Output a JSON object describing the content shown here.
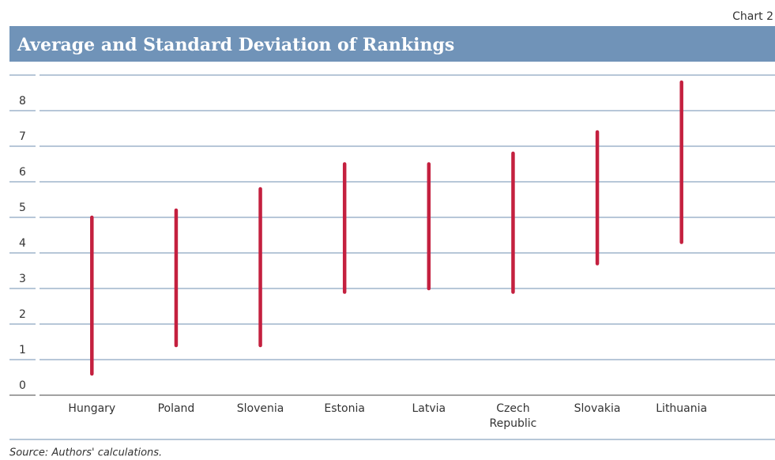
{
  "chart_label": "Chart 2",
  "chart_data": {
    "type": "range",
    "title": "Average and Standard Deviation of Rankings",
    "categories": [
      "Hungary",
      "Poland",
      "Slovenia",
      "Estonia",
      "Latvia",
      "Czech Republic",
      "Slovakia",
      "Lithuania"
    ],
    "lows": [
      0.6,
      1.4,
      1.4,
      2.9,
      3.0,
      2.9,
      3.7,
      4.3
    ],
    "highs": [
      5.0,
      5.2,
      5.8,
      6.5,
      6.5,
      6.8,
      7.4,
      8.8
    ],
    "color": "#c4203f",
    "ylim": [
      0,
      9
    ],
    "yticks": [
      0,
      1,
      2,
      3,
      4,
      5,
      6,
      7,
      8
    ],
    "grid": true
  },
  "source": "Source: Authors' calculations."
}
